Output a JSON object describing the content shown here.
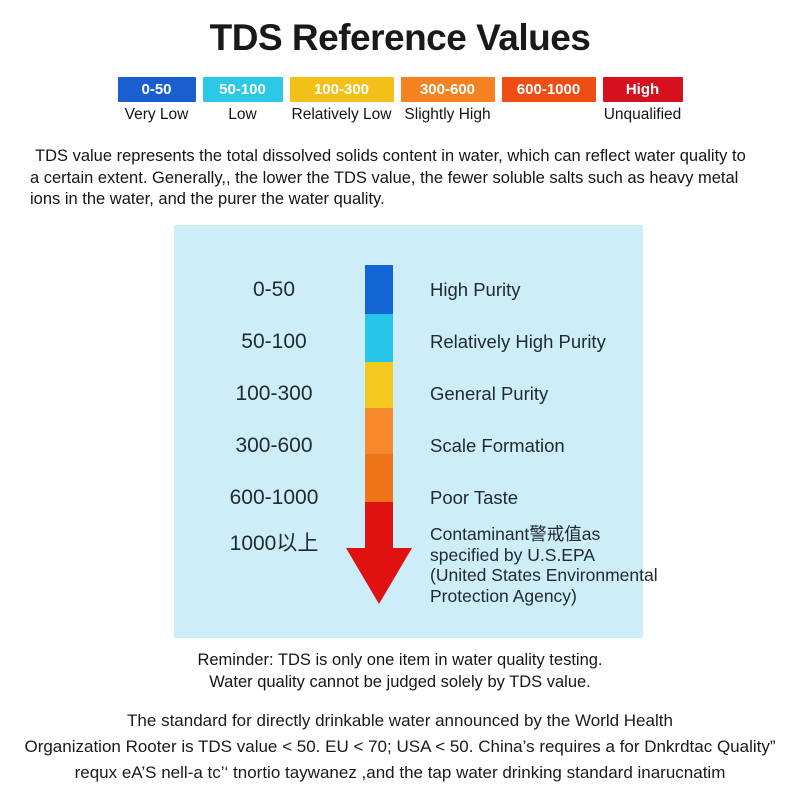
{
  "title": "TDS Reference Values",
  "scale": {
    "chips": [
      {
        "label": "0-50",
        "desc": "Very Low",
        "color": "#1a5fd0"
      },
      {
        "label": "50-100",
        "desc": "Low",
        "color": "#2cc8e8"
      },
      {
        "label": "100-300",
        "desc": "Relatively Low",
        "color": "#f2c018"
      },
      {
        "label": "300-600",
        "desc": "Slightly High",
        "color": "#f58220"
      },
      {
        "label": "600-1000",
        "desc": "",
        "color": "#ee4d13"
      },
      {
        "label": "High",
        "desc": "Unqualified",
        "color": "#d5101f"
      }
    ]
  },
  "intro": {
    "line1": "TDS value represents the total dissolved solids content in water, which can reflect water quality to",
    "line2": "a certain extent.  Generally,, the lower the TDS value, the fewer soluble salts such as heavy metal",
    "line3": "ions in the water, and the purer the water quality."
  },
  "diagram": {
    "background": "#cdedf8",
    "arrow_color": "#e11111",
    "rows": [
      {
        "range": "0-50",
        "desc": "High Purity",
        "color": "#1365d6"
      },
      {
        "range": "50-100",
        "desc": "Relatively High Purity",
        "color": "#25c6e9"
      },
      {
        "range": "100-300",
        "desc": "General Purity",
        "color": "#f4c91d"
      },
      {
        "range": "300-600",
        "desc": "Scale Formation",
        "color": "#f6892b"
      },
      {
        "range": "600-1000",
        "desc": "Poor Taste",
        "color": "#ef7418"
      },
      {
        "range": "1000以上",
        "color": "#e11111",
        "desc_lines": [
          "Contaminant警戒值as",
          "specified by U.S.EPA",
          "(United States Environmental",
          "Protection Agency)"
        ]
      }
    ]
  },
  "reminder": {
    "line1": "Reminder: TDS is only one item in water quality testing.",
    "line2": "Water quality cannot be judged solely by TDS value."
  },
  "footer": {
    "line1": "The standard for directly drinkable water announced by the World Health",
    "line2": "Organization Rooter is TDS value < 50. EU < 70; USA < 50. China’s requires a for Dnkrdtac Quality”",
    "line3": "requx eA’S nell-a tc’‘ tnortio taywanez ,and the tap water drinking standard inarucnatim"
  }
}
